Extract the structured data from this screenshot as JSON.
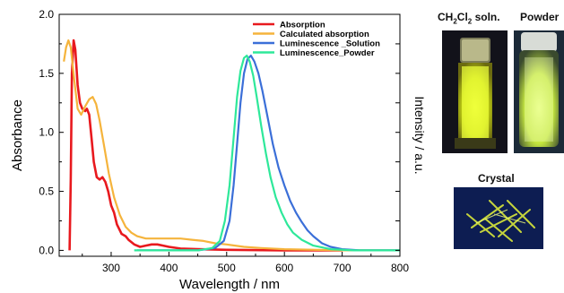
{
  "chart_data": {
    "type": "line",
    "xlabel": "Wavelength / nm",
    "ylabel": "Absorbance",
    "ylabel_right": "Intensity / a.u.",
    "xlim": [
      210,
      800
    ],
    "ylim": [
      -0.05,
      2.0
    ],
    "x_ticks": [
      "300",
      "400",
      "500",
      "600",
      "700",
      "800"
    ],
    "y_ticks": [
      "0.0",
      "0.5",
      "1.0",
      "1.5",
      "2.0"
    ],
    "legend_position": "top-right",
    "series": [
      {
        "name": "Absorption",
        "color": "#e8191e",
        "points": [
          [
            228,
            0.0
          ],
          [
            230,
            0.6
          ],
          [
            232,
            1.5
          ],
          [
            235,
            1.78
          ],
          [
            238,
            1.7
          ],
          [
            242,
            1.4
          ],
          [
            246,
            1.25
          ],
          [
            250,
            1.2
          ],
          [
            255,
            1.18
          ],
          [
            258,
            1.2
          ],
          [
            262,
            1.15
          ],
          [
            266,
            0.95
          ],
          [
            270,
            0.75
          ],
          [
            275,
            0.62
          ],
          [
            280,
            0.6
          ],
          [
            285,
            0.62
          ],
          [
            290,
            0.58
          ],
          [
            295,
            0.5
          ],
          [
            300,
            0.38
          ],
          [
            305,
            0.32
          ],
          [
            310,
            0.22
          ],
          [
            318,
            0.14
          ],
          [
            325,
            0.12
          ],
          [
            330,
            0.09
          ],
          [
            340,
            0.05
          ],
          [
            350,
            0.03
          ],
          [
            360,
            0.04
          ],
          [
            370,
            0.05
          ],
          [
            380,
            0.05
          ],
          [
            390,
            0.04
          ],
          [
            400,
            0.03
          ],
          [
            420,
            0.015
          ],
          [
            450,
            0.01
          ],
          [
            500,
            0.005
          ],
          [
            600,
            0.0
          ],
          [
            700,
            0.0
          ]
        ]
      },
      {
        "name": "Calculated absorption",
        "color": "#f5b43c",
        "points": [
          [
            218,
            1.6
          ],
          [
            222,
            1.72
          ],
          [
            226,
            1.78
          ],
          [
            230,
            1.72
          ],
          [
            236,
            1.45
          ],
          [
            242,
            1.2
          ],
          [
            248,
            1.15
          ],
          [
            255,
            1.22
          ],
          [
            262,
            1.28
          ],
          [
            268,
            1.3
          ],
          [
            274,
            1.24
          ],
          [
            280,
            1.1
          ],
          [
            288,
            0.88
          ],
          [
            296,
            0.65
          ],
          [
            305,
            0.45
          ],
          [
            315,
            0.3
          ],
          [
            325,
            0.2
          ],
          [
            335,
            0.15
          ],
          [
            345,
            0.12
          ],
          [
            360,
            0.1
          ],
          [
            380,
            0.1
          ],
          [
            400,
            0.1
          ],
          [
            420,
            0.1
          ],
          [
            440,
            0.09
          ],
          [
            460,
            0.08
          ],
          [
            480,
            0.06
          ],
          [
            500,
            0.05
          ],
          [
            530,
            0.03
          ],
          [
            560,
            0.02
          ],
          [
            600,
            0.01
          ],
          [
            700,
            0.0
          ],
          [
            800,
            0.0
          ]
        ]
      },
      {
        "name": "Luminescence _Solution",
        "color": "#3b6fd8",
        "points": [
          [
            345,
            0.0
          ],
          [
            400,
            0.0
          ],
          [
            450,
            0.0
          ],
          [
            480,
            0.02
          ],
          [
            495,
            0.08
          ],
          [
            505,
            0.25
          ],
          [
            512,
            0.55
          ],
          [
            518,
            0.9
          ],
          [
            524,
            1.25
          ],
          [
            530,
            1.5
          ],
          [
            536,
            1.62
          ],
          [
            542,
            1.65
          ],
          [
            548,
            1.6
          ],
          [
            555,
            1.5
          ],
          [
            562,
            1.35
          ],
          [
            570,
            1.15
          ],
          [
            580,
            0.9
          ],
          [
            590,
            0.7
          ],
          [
            600,
            0.55
          ],
          [
            610,
            0.42
          ],
          [
            620,
            0.32
          ],
          [
            630,
            0.24
          ],
          [
            640,
            0.17
          ],
          [
            650,
            0.12
          ],
          [
            665,
            0.06
          ],
          [
            680,
            0.03
          ],
          [
            700,
            0.01
          ],
          [
            730,
            0.0
          ],
          [
            800,
            0.0
          ]
        ]
      },
      {
        "name": "Luminescence_Powder",
        "color": "#2ee89a",
        "points": [
          [
            340,
            0.0
          ],
          [
            400,
            0.0
          ],
          [
            450,
            0.0
          ],
          [
            475,
            0.02
          ],
          [
            488,
            0.08
          ],
          [
            497,
            0.25
          ],
          [
            505,
            0.55
          ],
          [
            512,
            0.95
          ],
          [
            518,
            1.3
          ],
          [
            524,
            1.52
          ],
          [
            530,
            1.63
          ],
          [
            535,
            1.65
          ],
          [
            540,
            1.6
          ],
          [
            546,
            1.48
          ],
          [
            552,
            1.3
          ],
          [
            560,
            1.05
          ],
          [
            568,
            0.82
          ],
          [
            576,
            0.62
          ],
          [
            585,
            0.45
          ],
          [
            595,
            0.32
          ],
          [
            605,
            0.22
          ],
          [
            615,
            0.15
          ],
          [
            630,
            0.09
          ],
          [
            650,
            0.04
          ],
          [
            680,
            0.01
          ],
          [
            720,
            0.0
          ],
          [
            800,
            0.0
          ]
        ]
      }
    ]
  },
  "photos": {
    "solution_label_main": "CH",
    "solution_label_sub1": "2",
    "solution_label_mid": "Cl",
    "solution_label_sub2": "2",
    "solution_label_tail": " soln.",
    "powder_label": "Powder",
    "crystal_label": "Crystal"
  }
}
